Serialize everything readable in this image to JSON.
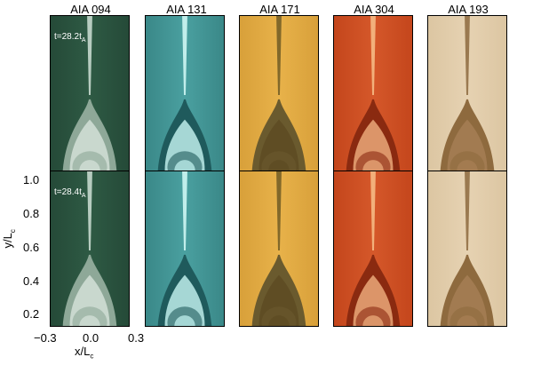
{
  "columns": [
    {
      "title": "AIA 094",
      "bg": "#2e5a44",
      "bg_dark": "#254a38",
      "dome_outer": "#8ea898",
      "dome_inner": "#d8e4dc",
      "jet": "#cfe0d6"
    },
    {
      "title": "AIA 131",
      "bg": "#4aa0a0",
      "bg_dark": "#3a8888",
      "dome_outer": "#1f5a5c",
      "dome_inner": "#c8f6f4",
      "jet": "#d6fbf8"
    },
    {
      "title": "AIA 171",
      "bg": "#e8b24a",
      "bg_dark": "#d8a03a",
      "dome_outer": "#6a5a2e",
      "dome_inner": "#5c4a22",
      "jet": "#6e5a24"
    },
    {
      "title": "AIA 304",
      "bg": "#d5582a",
      "bg_dark": "#c4461c",
      "dome_outer": "#8a2a10",
      "dome_inner": "#f0b080",
      "jet": "#f7c089"
    },
    {
      "title": "AIA 193",
      "bg": "#e6d2b2",
      "bg_dark": "#dcc6a2",
      "dome_outer": "#8e6a3e",
      "dome_inner": "#a88056",
      "jet": "#8c6a3e"
    }
  ],
  "rows": [
    {
      "time_label": "t=28.2t",
      "time_sub": "A"
    },
    {
      "time_label": "t=28.4t",
      "time_sub": "A"
    }
  ],
  "axes": {
    "y_ticks": [
      "1.0",
      "0.8",
      "0.6",
      "0.4",
      "0.2"
    ],
    "x_ticks": [
      "−0.3",
      "0.0",
      "0.3"
    ],
    "ylabel_main": "y/L",
    "ylabel_sub": "c",
    "xlabel_main": "x/L",
    "xlabel_sub": "c"
  }
}
